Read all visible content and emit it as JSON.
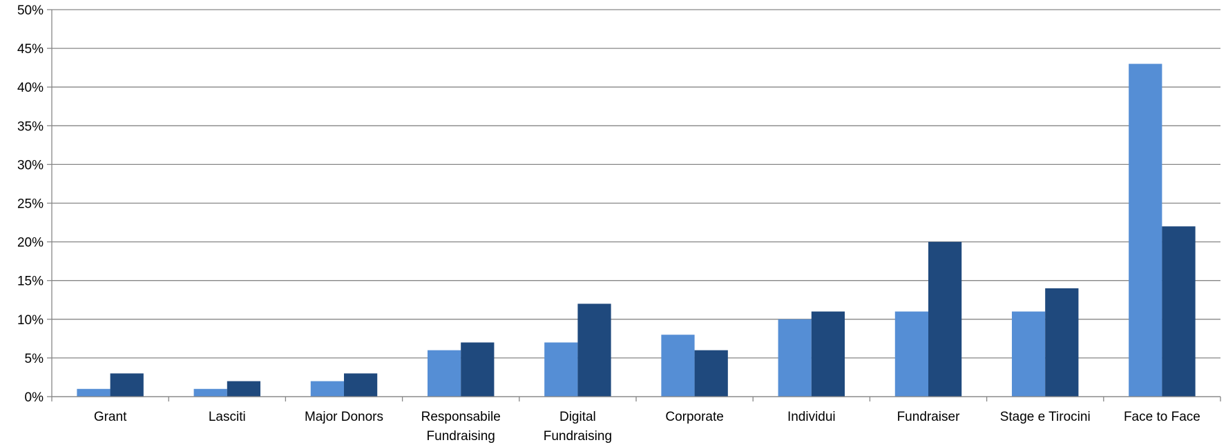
{
  "chart_data": {
    "type": "bar",
    "categories": [
      [
        "Grant"
      ],
      [
        "Lasciti"
      ],
      [
        "Major Donors"
      ],
      [
        "Responsabile",
        "Fundraising"
      ],
      [
        "Digital",
        "Fundraising"
      ],
      [
        "Corporate"
      ],
      [
        "Individui"
      ],
      [
        "Fundraiser"
      ],
      [
        "Stage e Tirocini"
      ],
      [
        "Face to Face"
      ]
    ],
    "series": [
      {
        "values": [
          1,
          1,
          2,
          6,
          7,
          8,
          10,
          11,
          11,
          43
        ],
        "color": "#558ed5"
      },
      {
        "values": [
          3,
          2,
          3,
          7,
          12,
          6,
          11,
          20,
          14,
          22
        ],
        "color": "#1f497d"
      }
    ],
    "y_ticks": [
      "0%",
      "5%",
      "10%",
      "15%",
      "20%",
      "25%",
      "30%",
      "35%",
      "40%",
      "45%",
      "50%"
    ],
    "ylim": [
      0,
      50
    ],
    "grid": true,
    "legend": "none"
  }
}
